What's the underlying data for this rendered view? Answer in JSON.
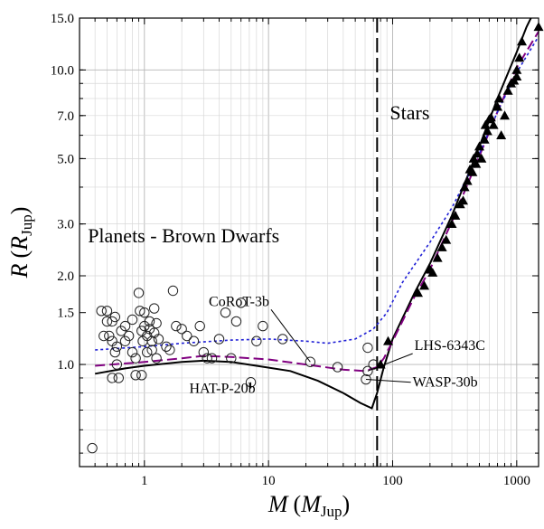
{
  "chart_data": {
    "type": "scatter",
    "xlabel": {
      "main": "M",
      "sym": "M",
      "sub": "Jup"
    },
    "ylabel": {
      "main": "R",
      "sym": "R",
      "sub": "Jup"
    },
    "xscale": "log",
    "yscale": "log",
    "xlim": [
      0.3,
      1500
    ],
    "ylim": [
      0.45,
      15.0
    ],
    "x_ticks": [
      {
        "value": 1,
        "label": "1"
      },
      {
        "value": 10,
        "label": "10"
      },
      {
        "value": 100,
        "label": "100"
      },
      {
        "value": 1000,
        "label": "1000"
      }
    ],
    "y_ticks": [
      {
        "value": 1.0,
        "label": "1.0"
      },
      {
        "value": 1.5,
        "label": "1.5"
      },
      {
        "value": 2.0,
        "label": "2.0"
      },
      {
        "value": 3.0,
        "label": "3.0"
      },
      {
        "value": 5.0,
        "label": "5.0"
      },
      {
        "value": 7.0,
        "label": "7.0"
      },
      {
        "value": 10.0,
        "label": "10.0"
      },
      {
        "value": 15.0,
        "label": "15.0"
      }
    ],
    "grid": true,
    "divider": {
      "x": 75,
      "style": "long-dash",
      "color": "#000000"
    },
    "regions": [
      {
        "text": "Planets - Brown Dwarfs",
        "x": 0.35,
        "y": 2.6
      },
      {
        "text": "Stars",
        "x": 95,
        "y": 6.8
      }
    ],
    "annotations": [
      {
        "text": "CoRoT-3b",
        "label_x": 3.3,
        "label_y": 1.58,
        "point_x": 21.7,
        "point_y": 1.02
      },
      {
        "text": "LHS-6343C",
        "label_x": 150,
        "label_y": 1.12,
        "point_x": 63,
        "point_y": 0.95
      },
      {
        "text": "WASP-30b",
        "label_x": 145,
        "label_y": 0.84,
        "point_x": 61,
        "point_y": 0.89
      },
      {
        "text": "HAT-P-20b",
        "label_x": 2.3,
        "label_y": 0.8,
        "point_x": 7.2,
        "point_y": 0.87
      }
    ],
    "series": [
      {
        "kind": "line",
        "color": "#000000",
        "dash": "solid",
        "points": [
          [
            0.4,
            0.93
          ],
          [
            0.7,
            0.97
          ],
          [
            1,
            0.99
          ],
          [
            2,
            1.02
          ],
          [
            3,
            1.03
          ],
          [
            5,
            1.02
          ],
          [
            8,
            0.99
          ],
          [
            15,
            0.95
          ],
          [
            25,
            0.88
          ],
          [
            40,
            0.8
          ],
          [
            55,
            0.74
          ],
          [
            68,
            0.71
          ],
          [
            75,
            0.8
          ],
          [
            85,
            0.98
          ],
          [
            100,
            1.22
          ],
          [
            150,
            1.75
          ],
          [
            200,
            2.2
          ],
          [
            300,
            3.2
          ],
          [
            500,
            5.5
          ],
          [
            700,
            8.0
          ],
          [
            1000,
            11.5
          ],
          [
            1200,
            14.0
          ],
          [
            1300,
            15.0
          ]
        ]
      },
      {
        "kind": "line",
        "color": "#800080",
        "dash": "long-dash",
        "points": [
          [
            0.4,
            0.99
          ],
          [
            1,
            1.02
          ],
          [
            2,
            1.05
          ],
          [
            3,
            1.07
          ],
          [
            5,
            1.06
          ],
          [
            10,
            1.04
          ],
          [
            20,
            1.0
          ],
          [
            40,
            0.96
          ],
          [
            60,
            0.95
          ],
          [
            75,
            0.98
          ],
          [
            85,
            1.05
          ],
          [
            100,
            1.2
          ],
          [
            150,
            1.7
          ],
          [
            200,
            2.1
          ],
          [
            300,
            3.05
          ],
          [
            500,
            5.1
          ],
          [
            700,
            7.2
          ],
          [
            1000,
            10.2
          ],
          [
            1500,
            13.5
          ]
        ]
      },
      {
        "kind": "line",
        "color": "#1f1fd6",
        "dash": "dot",
        "points": [
          [
            0.4,
            1.12
          ],
          [
            1,
            1.15
          ],
          [
            2,
            1.18
          ],
          [
            5,
            1.21
          ],
          [
            10,
            1.22
          ],
          [
            20,
            1.2
          ],
          [
            30,
            1.18
          ],
          [
            50,
            1.22
          ],
          [
            70,
            1.32
          ],
          [
            90,
            1.5
          ],
          [
            120,
            1.9
          ],
          [
            200,
            2.6
          ],
          [
            300,
            3.4
          ],
          [
            500,
            5.2
          ],
          [
            700,
            7.2
          ],
          [
            1000,
            9.8
          ],
          [
            1500,
            13.0
          ]
        ]
      },
      {
        "kind": "scatter",
        "marker": "open-circle",
        "points": [
          [
            0.38,
            0.52
          ],
          [
            0.45,
            1.52
          ],
          [
            0.5,
            1.4
          ],
          [
            0.5,
            1.52
          ],
          [
            0.47,
            1.25
          ],
          [
            0.52,
            1.25
          ],
          [
            0.55,
            1.4
          ],
          [
            0.55,
            1.2
          ],
          [
            0.58,
            1.45
          ],
          [
            0.58,
            1.1
          ],
          [
            0.6,
            1.15
          ],
          [
            0.6,
            1.0
          ],
          [
            0.55,
            0.9
          ],
          [
            0.62,
            0.9
          ],
          [
            0.65,
            1.3
          ],
          [
            0.7,
            1.35
          ],
          [
            0.7,
            1.2
          ],
          [
            0.75,
            1.25
          ],
          [
            0.8,
            1.42
          ],
          [
            0.8,
            1.1
          ],
          [
            0.85,
            1.05
          ],
          [
            0.85,
            0.92
          ],
          [
            0.9,
            1.75
          ],
          [
            0.92,
            1.52
          ],
          [
            0.95,
            1.3
          ],
          [
            0.97,
            1.2
          ],
          [
            1.0,
            1.5
          ],
          [
            1.0,
            1.35
          ],
          [
            1.05,
            1.25
          ],
          [
            1.05,
            1.1
          ],
          [
            1.1,
            1.4
          ],
          [
            1.1,
            1.32
          ],
          [
            1.15,
            1.2
          ],
          [
            1.15,
            1.12
          ],
          [
            1.2,
            1.55
          ],
          [
            1.2,
            1.28
          ],
          [
            1.25,
            1.38
          ],
          [
            1.25,
            1.05
          ],
          [
            1.3,
            1.22
          ],
          [
            0.95,
            0.92
          ],
          [
            1.5,
            1.15
          ],
          [
            1.6,
            1.12
          ],
          [
            1.7,
            1.78
          ],
          [
            1.8,
            1.35
          ],
          [
            2.0,
            1.32
          ],
          [
            2.2,
            1.25
          ],
          [
            2.5,
            1.2
          ],
          [
            2.8,
            1.35
          ],
          [
            3.0,
            1.1
          ],
          [
            3.2,
            1.05
          ],
          [
            3.5,
            1.05
          ],
          [
            4.0,
            1.22
          ],
          [
            4.5,
            1.5
          ],
          [
            5.0,
            1.05
          ],
          [
            5.5,
            1.4
          ],
          [
            6.0,
            1.62
          ],
          [
            7.2,
            0.87
          ],
          [
            8.0,
            1.2
          ],
          [
            9.0,
            1.35
          ],
          [
            13,
            1.22
          ],
          [
            21.7,
            1.02
          ],
          [
            36,
            0.98
          ],
          [
            61,
            0.89
          ],
          [
            63,
            1.14
          ],
          [
            63,
            0.95
          ],
          [
            70,
            1.0
          ]
        ]
      },
      {
        "kind": "scatter",
        "marker": "filled-triangle",
        "points": [
          [
            80,
            1.0
          ],
          [
            92,
            1.2
          ],
          [
            160,
            1.75
          ],
          [
            180,
            1.85
          ],
          [
            200,
            2.1
          ],
          [
            210,
            2.05
          ],
          [
            230,
            2.3
          ],
          [
            250,
            2.5
          ],
          [
            270,
            2.65
          ],
          [
            300,
            3.0
          ],
          [
            320,
            3.2
          ],
          [
            350,
            3.5
          ],
          [
            370,
            3.6
          ],
          [
            380,
            4.0
          ],
          [
            400,
            4.2
          ],
          [
            420,
            4.6
          ],
          [
            440,
            4.5
          ],
          [
            450,
            5.0
          ],
          [
            470,
            4.8
          ],
          [
            480,
            5.2
          ],
          [
            500,
            5.5
          ],
          [
            520,
            5.0
          ],
          [
            550,
            5.8
          ],
          [
            560,
            6.5
          ],
          [
            580,
            6.2
          ],
          [
            600,
            6.8
          ],
          [
            620,
            6.9
          ],
          [
            650,
            6.5
          ],
          [
            700,
            7.5
          ],
          [
            720,
            8.0
          ],
          [
            750,
            6.0
          ],
          [
            800,
            7.0
          ],
          [
            850,
            8.5
          ],
          [
            900,
            9.0
          ],
          [
            950,
            9.2
          ],
          [
            1000,
            9.5
          ],
          [
            1000,
            10.0
          ],
          [
            1050,
            11.0
          ],
          [
            1100,
            12.5
          ],
          [
            1500,
            14.0
          ]
        ]
      }
    ]
  }
}
